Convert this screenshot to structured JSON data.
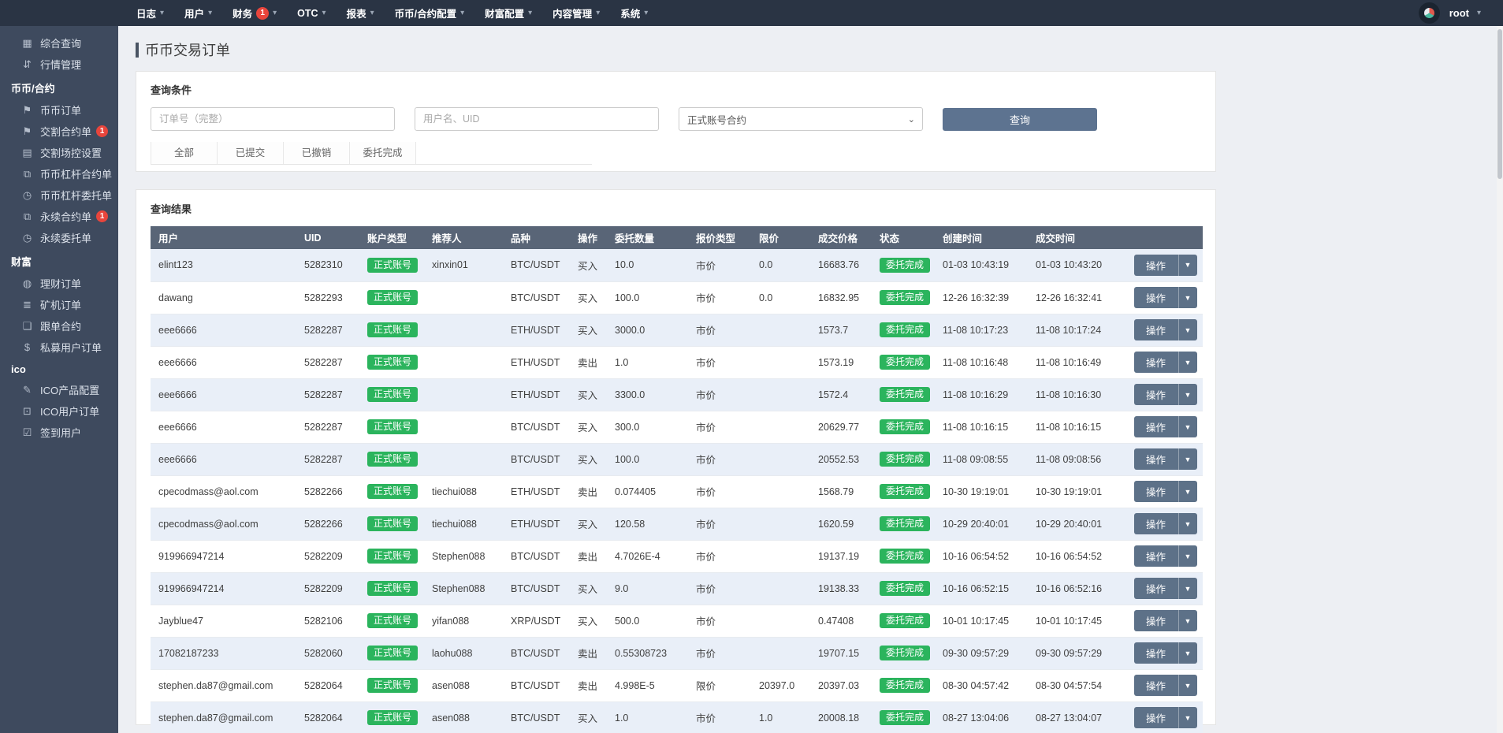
{
  "topbar": {
    "menus": [
      {
        "label": "日志"
      },
      {
        "label": "用户"
      },
      {
        "label": "财务",
        "badge": "1"
      },
      {
        "label": "OTC"
      },
      {
        "label": "报表"
      },
      {
        "label": "币币/合约配置"
      },
      {
        "label": "财富配置"
      },
      {
        "label": "内容管理"
      },
      {
        "label": "系统"
      }
    ],
    "user": "root"
  },
  "sidebar": {
    "items": [
      {
        "type": "item",
        "label": "综合查询",
        "icon": "grid-icon"
      },
      {
        "type": "item",
        "label": "行情管理",
        "icon": "sort-icon"
      },
      {
        "type": "section",
        "label": "币币/合约"
      },
      {
        "type": "item",
        "label": "币币订单",
        "icon": "bookmark-icon"
      },
      {
        "type": "item",
        "label": "交割合约单",
        "icon": "bookmark-icon",
        "badge": "1"
      },
      {
        "type": "item",
        "label": "交割场控设置",
        "icon": "clipboard-icon"
      },
      {
        "type": "item",
        "label": "币币杠杆合约单",
        "icon": "copy-icon"
      },
      {
        "type": "item",
        "label": "币币杠杆委托单",
        "icon": "clock-doc-icon"
      },
      {
        "type": "item",
        "label": "永续合约单",
        "icon": "copy-icon",
        "badge": "1"
      },
      {
        "type": "item",
        "label": "永续委托单",
        "icon": "clock-doc-icon"
      },
      {
        "type": "section",
        "label": "财富"
      },
      {
        "type": "item",
        "label": "理财订单",
        "icon": "coins-icon"
      },
      {
        "type": "item",
        "label": "矿机订单",
        "icon": "layers-icon"
      },
      {
        "type": "item",
        "label": "跟单合约",
        "icon": "follow-icon"
      },
      {
        "type": "item",
        "label": "私募用户订单",
        "icon": "dollar-icon"
      },
      {
        "type": "section",
        "label": "ico"
      },
      {
        "type": "item",
        "label": "ICO产品配置",
        "icon": "edit-doc-icon"
      },
      {
        "type": "item",
        "label": "ICO用户订单",
        "icon": "monitor-icon"
      },
      {
        "type": "item",
        "label": "签到用户",
        "icon": "check-icon"
      }
    ]
  },
  "page": {
    "title": "币币交易订单"
  },
  "query": {
    "panel_title": "查询条件",
    "order_placeholder": "订单号（完整）",
    "user_placeholder": "用户名、UID",
    "account_select": "正式账号合约",
    "search_label": "查询",
    "tabs": [
      "全部",
      "已提交",
      "已撤销",
      "委托完成"
    ]
  },
  "results": {
    "panel_title": "查询结果",
    "columns": [
      "用户",
      "UID",
      "账户类型",
      "推荐人",
      "品种",
      "操作",
      "委托数量",
      "报价类型",
      "限价",
      "成交价格",
      "状态",
      "创建时间",
      "成交时间",
      ""
    ],
    "action_label": "操作",
    "rows": [
      {
        "user": "elint123",
        "uid": "5282310",
        "account": "正式账号",
        "referrer": "xinxin01",
        "pair": "BTC/USDT",
        "side": "买入",
        "amount": "10.0",
        "price_type": "市价",
        "limit": "0.0",
        "deal_price": "16683.76",
        "status": "委托完成",
        "created": "01-03 10:43:19",
        "dealt": "01-03 10:43:20"
      },
      {
        "user": "dawang",
        "uid": "5282293",
        "account": "正式账号",
        "referrer": "",
        "pair": "BTC/USDT",
        "side": "买入",
        "amount": "100.0",
        "price_type": "市价",
        "limit": "0.0",
        "deal_price": "16832.95",
        "status": "委托完成",
        "created": "12-26 16:32:39",
        "dealt": "12-26 16:32:41"
      },
      {
        "user": "eee6666",
        "uid": "5282287",
        "account": "正式账号",
        "referrer": "",
        "pair": "ETH/USDT",
        "side": "买入",
        "amount": "3000.0",
        "price_type": "市价",
        "limit": "",
        "deal_price": "1573.7",
        "status": "委托完成",
        "created": "11-08 10:17:23",
        "dealt": "11-08 10:17:24"
      },
      {
        "user": "eee6666",
        "uid": "5282287",
        "account": "正式账号",
        "referrer": "",
        "pair": "ETH/USDT",
        "side": "卖出",
        "amount": "1.0",
        "price_type": "市价",
        "limit": "",
        "deal_price": "1573.19",
        "status": "委托完成",
        "created": "11-08 10:16:48",
        "dealt": "11-08 10:16:49"
      },
      {
        "user": "eee6666",
        "uid": "5282287",
        "account": "正式账号",
        "referrer": "",
        "pair": "ETH/USDT",
        "side": "买入",
        "amount": "3300.0",
        "price_type": "市价",
        "limit": "",
        "deal_price": "1572.4",
        "status": "委托完成",
        "created": "11-08 10:16:29",
        "dealt": "11-08 10:16:30"
      },
      {
        "user": "eee6666",
        "uid": "5282287",
        "account": "正式账号",
        "referrer": "",
        "pair": "BTC/USDT",
        "side": "买入",
        "amount": "300.0",
        "price_type": "市价",
        "limit": "",
        "deal_price": "20629.77",
        "status": "委托完成",
        "created": "11-08 10:16:15",
        "dealt": "11-08 10:16:15"
      },
      {
        "user": "eee6666",
        "uid": "5282287",
        "account": "正式账号",
        "referrer": "",
        "pair": "BTC/USDT",
        "side": "买入",
        "amount": "100.0",
        "price_type": "市价",
        "limit": "",
        "deal_price": "20552.53",
        "status": "委托完成",
        "created": "11-08 09:08:55",
        "dealt": "11-08 09:08:56"
      },
      {
        "user": "cpecodmass@aol.com",
        "uid": "5282266",
        "account": "正式账号",
        "referrer": "tiechui088",
        "pair": "ETH/USDT",
        "side": "卖出",
        "amount": "0.074405",
        "price_type": "市价",
        "limit": "",
        "deal_price": "1568.79",
        "status": "委托完成",
        "created": "10-30 19:19:01",
        "dealt": "10-30 19:19:01"
      },
      {
        "user": "cpecodmass@aol.com",
        "uid": "5282266",
        "account": "正式账号",
        "referrer": "tiechui088",
        "pair": "ETH/USDT",
        "side": "买入",
        "amount": "120.58",
        "price_type": "市价",
        "limit": "",
        "deal_price": "1620.59",
        "status": "委托完成",
        "created": "10-29 20:40:01",
        "dealt": "10-29 20:40:01"
      },
      {
        "user": "919966947214",
        "uid": "5282209",
        "account": "正式账号",
        "referrer": "Stephen088",
        "pair": "BTC/USDT",
        "side": "卖出",
        "amount": "4.7026E-4",
        "price_type": "市价",
        "limit": "",
        "deal_price": "19137.19",
        "status": "委托完成",
        "created": "10-16 06:54:52",
        "dealt": "10-16 06:54:52"
      },
      {
        "user": "919966947214",
        "uid": "5282209",
        "account": "正式账号",
        "referrer": "Stephen088",
        "pair": "BTC/USDT",
        "side": "买入",
        "amount": "9.0",
        "price_type": "市价",
        "limit": "",
        "deal_price": "19138.33",
        "status": "委托完成",
        "created": "10-16 06:52:15",
        "dealt": "10-16 06:52:16"
      },
      {
        "user": "Jayblue47",
        "uid": "5282106",
        "account": "正式账号",
        "referrer": "yifan088",
        "pair": "XRP/USDT",
        "side": "买入",
        "amount": "500.0",
        "price_type": "市价",
        "limit": "",
        "deal_price": "0.47408",
        "status": "委托完成",
        "created": "10-01 10:17:45",
        "dealt": "10-01 10:17:45"
      },
      {
        "user": "17082187233",
        "uid": "5282060",
        "account": "正式账号",
        "referrer": "laohu088",
        "pair": "BTC/USDT",
        "side": "卖出",
        "amount": "0.55308723",
        "price_type": "市价",
        "limit": "",
        "deal_price": "19707.15",
        "status": "委托完成",
        "created": "09-30 09:57:29",
        "dealt": "09-30 09:57:29"
      },
      {
        "user": "stephen.da87@gmail.com",
        "uid": "5282064",
        "account": "正式账号",
        "referrer": "asen088",
        "pair": "BTC/USDT",
        "side": "卖出",
        "amount": "4.998E-5",
        "price_type": "限价",
        "limit": "20397.0",
        "deal_price": "20397.03",
        "status": "委托完成",
        "created": "08-30 04:57:42",
        "dealt": "08-30 04:57:54"
      },
      {
        "user": "stephen.da87@gmail.com",
        "uid": "5282064",
        "account": "正式账号",
        "referrer": "asen088",
        "pair": "BTC/USDT",
        "side": "买入",
        "amount": "1.0",
        "price_type": "市价",
        "limit": "1.0",
        "deal_price": "20008.18",
        "status": "委托完成",
        "created": "08-27 13:04:06",
        "dealt": "08-27 13:04:07"
      }
    ]
  },
  "colors": {
    "topbar_bg": "#2a3444",
    "sidebar_bg": "#3e4a5e",
    "accent_slate": "#5d7390",
    "table_header_bg": "#596577",
    "badge_green": "#2bb45d",
    "badge_red": "#e8453c",
    "row_alt": "#e9eff8"
  }
}
